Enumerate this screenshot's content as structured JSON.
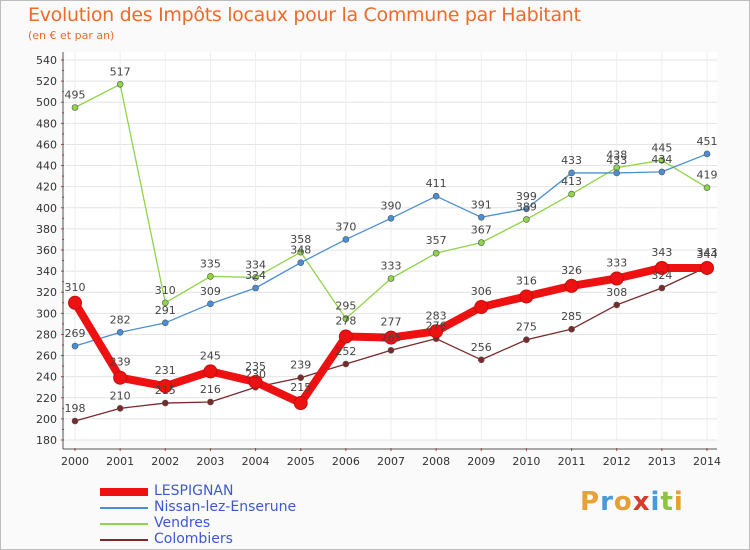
{
  "title": "Evolution des Impôts locaux pour la Commune par Habitant",
  "subtitle": "(en € et par an)",
  "logo": {
    "letters": [
      "P",
      "r",
      "o",
      "x",
      "i",
      "t",
      "i"
    ],
    "colors": [
      "#e8a13a",
      "#4a9ad8",
      "#e5a031",
      "#d93b2b",
      "#4a9ad8",
      "#8cc43d",
      "#e5a031"
    ]
  },
  "chart_data": {
    "type": "line",
    "x": [
      "2000",
      "2001",
      "2002",
      "2003",
      "2004",
      "2005",
      "2006",
      "2007",
      "2008",
      "2009",
      "2010",
      "2011",
      "2012",
      "2013",
      "2014"
    ],
    "ylim": [
      180,
      540
    ],
    "yticks": [
      "180",
      "200",
      "220",
      "240",
      "260",
      "280",
      "300",
      "320",
      "340",
      "360",
      "380",
      "400",
      "420",
      "440",
      "460",
      "480",
      "500",
      "520",
      "540"
    ],
    "series": [
      {
        "name": "LESPIGNAN",
        "color": "#ee1111",
        "values": [
          310,
          239,
          231,
          245,
          235,
          215,
          278,
          277,
          283,
          306,
          316,
          326,
          333,
          343,
          343
        ],
        "labels": [
          "310",
          "239",
          "231",
          "245",
          "235",
          "215",
          "278",
          "277",
          "283",
          "306",
          "316",
          "326",
          "333",
          "343",
          "343"
        ]
      },
      {
        "name": "Nissan-lez-Enserune",
        "color": "#4a8fd4",
        "values": [
          269,
          282,
          291,
          309,
          324,
          348,
          370,
          390,
          411,
          391,
          399,
          433,
          433,
          434,
          451
        ],
        "labels": [
          "269",
          "282",
          "291",
          "309",
          "324",
          "348",
          "370",
          "390",
          "411",
          "391",
          "399",
          "433",
          "433",
          "434",
          "451"
        ]
      },
      {
        "name": "Vendres",
        "color": "#8fd44a",
        "values": [
          495,
          517,
          310,
          335,
          334,
          358,
          295,
          333,
          357,
          367,
          389,
          413,
          438,
          445,
          419
        ],
        "labels": [
          "495",
          "517",
          "310",
          "335",
          "334",
          "358",
          "295",
          "333",
          "357",
          "367",
          "389",
          "413",
          "438",
          "445",
          "419"
        ]
      },
      {
        "name": "Colombiers",
        "color": "#7a2a2a",
        "values": [
          198,
          210,
          215,
          216,
          230,
          239,
          252,
          265,
          276,
          256,
          275,
          285,
          308,
          324,
          344
        ],
        "labels": [
          "198",
          "210",
          "215",
          "216",
          "230",
          "239",
          "252",
          "265",
          "276",
          "256",
          "275",
          "285",
          "308",
          "324",
          "344"
        ]
      }
    ],
    "grid": true,
    "legend_position": "bottom-left"
  }
}
